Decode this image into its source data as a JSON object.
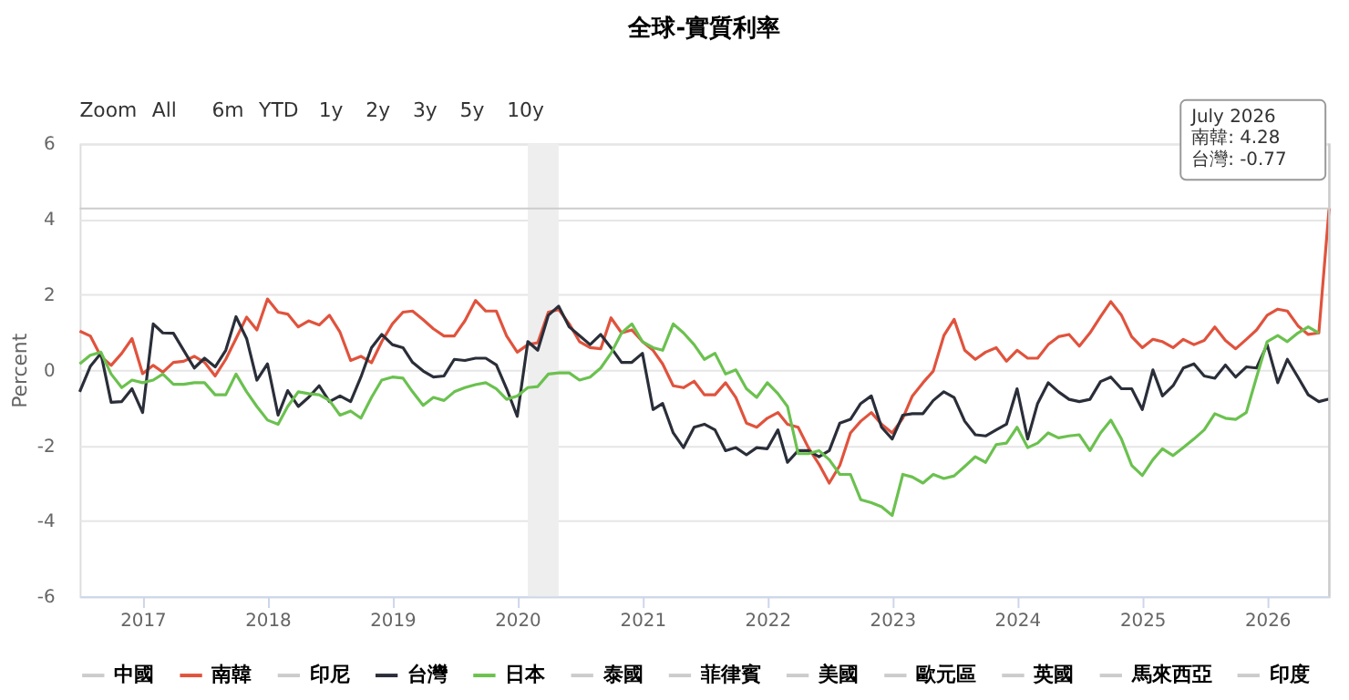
{
  "chart_data": {
    "type": "line",
    "title": "全球-實質利率",
    "ylabel": "Percent",
    "x": [
      "2016-07",
      "2016-08",
      "2016-09",
      "2016-10",
      "2016-11",
      "2016-12",
      "2017-01",
      "2017-02",
      "2017-03",
      "2017-04",
      "2017-05",
      "2017-06",
      "2017-07",
      "2017-08",
      "2017-09",
      "2017-10",
      "2017-11",
      "2017-12",
      "2018-01",
      "2018-02",
      "2018-03",
      "2018-04",
      "2018-05",
      "2018-06",
      "2018-07",
      "2018-08",
      "2018-09",
      "2018-10",
      "2018-11",
      "2018-12",
      "2019-01",
      "2019-02",
      "2019-03",
      "2019-04",
      "2019-05",
      "2019-06",
      "2019-07",
      "2019-08",
      "2019-09",
      "2019-10",
      "2019-11",
      "2019-12",
      "2020-01",
      "2020-02",
      "2020-03",
      "2020-04",
      "2020-05",
      "2020-06",
      "2020-07",
      "2020-08",
      "2020-09",
      "2020-10",
      "2020-11",
      "2020-12",
      "2021-01",
      "2021-02",
      "2021-03",
      "2021-04",
      "2021-05",
      "2021-06",
      "2021-07",
      "2021-08",
      "2021-09",
      "2021-10",
      "2021-11",
      "2021-12",
      "2022-01",
      "2022-02",
      "2022-03",
      "2022-04",
      "2022-05",
      "2022-06",
      "2022-07",
      "2022-08",
      "2022-09",
      "2022-10",
      "2022-11",
      "2022-12",
      "2023-01",
      "2023-02",
      "2023-03",
      "2023-04",
      "2023-05",
      "2023-06",
      "2023-07",
      "2023-08",
      "2023-09",
      "2023-10",
      "2023-11",
      "2023-12",
      "2024-01",
      "2024-02",
      "2024-03",
      "2024-04",
      "2024-05",
      "2024-06",
      "2024-07",
      "2024-08",
      "2024-09",
      "2024-10",
      "2024-11",
      "2024-12",
      "2025-01",
      "2025-02",
      "2025-03",
      "2025-04",
      "2025-05",
      "2025-06",
      "2025-07",
      "2025-08",
      "2025-09",
      "2025-10",
      "2025-11",
      "2025-12",
      "2026-01",
      "2026-02",
      "2026-03",
      "2026-04",
      "2026-05",
      "2026-06",
      "2026-07"
    ],
    "series": [
      {
        "name": "中國",
        "color": "#cccccc",
        "values": [
          null,
          null,
          null,
          null,
          null,
          null,
          null,
          null,
          null,
          null,
          null,
          null,
          null,
          null,
          null,
          null,
          null,
          null,
          null,
          null,
          null,
          null,
          null,
          null,
          null,
          null,
          null,
          null,
          null,
          null,
          null,
          null,
          null,
          null,
          null,
          null,
          null,
          null,
          null,
          null,
          null,
          null,
          null,
          null,
          null,
          null,
          null,
          null,
          null,
          null,
          null,
          null,
          null,
          null,
          null,
          null,
          null,
          null,
          null,
          null,
          null,
          null,
          null,
          null,
          null,
          null,
          null,
          null,
          null,
          null,
          null,
          null,
          null,
          null,
          null,
          null,
          null,
          null,
          null,
          null,
          null,
          null,
          null,
          null,
          null,
          null,
          null,
          null,
          null,
          null,
          null,
          null,
          null,
          null,
          null,
          null,
          null,
          null,
          null,
          null,
          null,
          null,
          null,
          null,
          null,
          null,
          null,
          null,
          null,
          null,
          null,
          null,
          null,
          null,
          null,
          null,
          null,
          null,
          null,
          null,
          null
        ]
      },
      {
        "name": "南韓",
        "color": "#e0533d",
        "values": [
          1.03,
          0.9,
          0.36,
          0.12,
          0.44,
          0.83,
          -0.1,
          0.12,
          -0.06,
          0.2,
          0.23,
          0.36,
          0.2,
          -0.16,
          0.28,
          0.83,
          1.4,
          1.06,
          1.88,
          1.53,
          1.48,
          1.14,
          1.3,
          1.19,
          1.45,
          1.0,
          0.25,
          0.36,
          0.19,
          0.75,
          1.22,
          1.53,
          1.56,
          1.33,
          1.09,
          0.9,
          0.9,
          1.3,
          1.84,
          1.56,
          1.56,
          0.9,
          0.47,
          0.67,
          0.72,
          1.53,
          1.6,
          1.22,
          0.75,
          0.59,
          0.56,
          1.38,
          0.98,
          1.06,
          0.75,
          0.52,
          0.16,
          -0.42,
          -0.47,
          -0.3,
          -0.66,
          -0.66,
          -0.34,
          -0.73,
          -1.41,
          -1.52,
          -1.28,
          -1.13,
          -1.44,
          -1.52,
          -2.06,
          -2.5,
          -3.0,
          -2.53,
          -1.67,
          -1.36,
          -1.13,
          -1.44,
          -1.67,
          -1.28,
          -0.69,
          -0.34,
          -0.03,
          0.91,
          1.34,
          0.52,
          0.28,
          0.47,
          0.59,
          0.23,
          0.52,
          0.31,
          0.31,
          0.67,
          0.88,
          0.94,
          0.63,
          0.98,
          1.41,
          1.81,
          1.45,
          0.88,
          0.59,
          0.81,
          0.75,
          0.59,
          0.81,
          0.67,
          0.78,
          1.14,
          0.78,
          0.56,
          0.81,
          1.06,
          1.45,
          1.61,
          1.56,
          1.17,
          0.94,
          0.98,
          4.28
        ]
      },
      {
        "name": "印尼",
        "color": "#cccccc",
        "values": [
          null,
          null,
          null,
          null,
          null,
          null,
          null,
          null,
          null,
          null,
          null,
          null,
          null,
          null,
          null,
          null,
          null,
          null,
          null,
          null,
          null,
          null,
          null,
          null,
          null,
          null,
          null,
          null,
          null,
          null,
          null,
          null,
          null,
          null,
          null,
          null,
          null,
          null,
          null,
          null,
          null,
          null,
          null,
          null,
          null,
          null,
          null,
          null,
          null,
          null,
          null,
          null,
          null,
          null,
          null,
          null,
          null,
          null,
          null,
          null,
          null,
          null,
          null,
          null,
          null,
          null,
          null,
          null,
          null,
          null,
          null,
          null,
          null,
          null,
          null,
          null,
          null,
          null,
          null,
          null,
          null,
          null,
          null,
          null,
          null,
          null,
          null,
          null,
          null,
          null,
          null,
          null,
          null,
          null,
          null,
          null,
          null,
          null,
          null,
          null,
          null,
          null,
          null,
          null,
          null,
          null,
          null,
          null,
          null,
          null,
          null,
          null,
          null,
          null,
          null,
          null,
          null,
          null,
          null,
          null,
          null
        ]
      },
      {
        "name": "台灣",
        "color": "#2a2e39",
        "values": [
          -0.58,
          0.09,
          0.44,
          -0.86,
          -0.84,
          -0.5,
          -1.13,
          1.22,
          0.98,
          0.97,
          0.52,
          0.05,
          0.31,
          0.08,
          0.52,
          1.41,
          0.83,
          -0.27,
          0.16,
          -1.2,
          -0.55,
          -0.97,
          -0.73,
          -0.42,
          -0.84,
          -0.69,
          -0.84,
          -0.19,
          0.59,
          0.94,
          0.67,
          0.59,
          0.2,
          -0.03,
          -0.19,
          -0.16,
          0.28,
          0.25,
          0.31,
          0.31,
          0.13,
          -0.5,
          -1.23,
          0.75,
          0.52,
          1.45,
          1.69,
          1.14,
          0.91,
          0.67,
          0.94,
          0.59,
          0.2,
          0.2,
          0.44,
          -1.05,
          -0.89,
          -1.67,
          -2.06,
          -1.52,
          -1.44,
          -1.59,
          -2.14,
          -2.06,
          -2.25,
          -2.06,
          -2.09,
          -1.59,
          -2.45,
          -2.14,
          -2.14,
          -2.3,
          -2.14,
          -1.41,
          -1.31,
          -0.89,
          -0.69,
          -1.52,
          -1.83,
          -1.2,
          -1.16,
          -1.16,
          -0.81,
          -0.58,
          -0.73,
          -1.36,
          -1.72,
          -1.75,
          -1.59,
          -1.44,
          -0.5,
          -1.83,
          -0.89,
          -0.34,
          -0.58,
          -0.78,
          -0.84,
          -0.78,
          -0.31,
          -0.19,
          -0.5,
          -0.5,
          -1.05,
          0.0,
          -0.69,
          -0.42,
          0.05,
          0.16,
          -0.16,
          -0.22,
          0.13,
          -0.19,
          0.08,
          0.05,
          0.67,
          -0.34,
          0.28,
          -0.19,
          -0.66,
          -0.84,
          -0.77
        ]
      },
      {
        "name": "日本",
        "color": "#6bc14f",
        "values": [
          0.16,
          0.39,
          0.47,
          -0.11,
          -0.47,
          -0.27,
          -0.34,
          -0.27,
          -0.11,
          -0.38,
          -0.38,
          -0.34,
          -0.34,
          -0.66,
          -0.66,
          -0.11,
          -0.58,
          -0.97,
          -1.33,
          -1.44,
          -0.97,
          -0.58,
          -0.63,
          -0.66,
          -0.81,
          -1.2,
          -1.09,
          -1.28,
          -0.73,
          -0.27,
          -0.19,
          -0.22,
          -0.58,
          -0.94,
          -0.73,
          -0.81,
          -0.58,
          -0.47,
          -0.39,
          -0.34,
          -0.5,
          -0.78,
          -0.69,
          -0.47,
          -0.44,
          -0.11,
          -0.08,
          -0.08,
          -0.27,
          -0.19,
          0.05,
          0.44,
          0.98,
          1.22,
          0.75,
          0.59,
          0.52,
          1.22,
          0.98,
          0.67,
          0.28,
          0.44,
          -0.11,
          0.0,
          -0.5,
          -0.73,
          -0.34,
          -0.63,
          -0.97,
          -2.22,
          -2.22,
          -2.14,
          -2.38,
          -2.77,
          -2.77,
          -3.44,
          -3.52,
          -3.63,
          -3.86,
          -2.77,
          -2.84,
          -3.0,
          -2.77,
          -2.88,
          -2.81,
          -2.56,
          -2.3,
          -2.45,
          -1.98,
          -1.94,
          -1.52,
          -2.06,
          -1.94,
          -1.67,
          -1.8,
          -1.75,
          -1.72,
          -2.14,
          -1.67,
          -1.33,
          -1.83,
          -2.53,
          -2.8,
          -2.38,
          -2.09,
          -2.27,
          -2.06,
          -1.83,
          -1.59,
          -1.16,
          -1.28,
          -1.31,
          -1.13,
          -0.19,
          0.75,
          0.91,
          0.75,
          0.98,
          1.14,
          0.98,
          null
        ]
      },
      {
        "name": "泰國",
        "color": "#cccccc",
        "values": [
          null,
          null,
          null,
          null,
          null,
          null,
          null,
          null,
          null,
          null,
          null,
          null,
          null,
          null,
          null,
          null,
          null,
          null,
          null,
          null,
          null,
          null,
          null,
          null,
          null,
          null,
          null,
          null,
          null,
          null,
          null,
          null,
          null,
          null,
          null,
          null,
          null,
          null,
          null,
          null,
          null,
          null,
          null,
          null,
          null,
          null,
          null,
          null,
          null,
          null,
          null,
          null,
          null,
          null,
          null,
          null,
          null,
          null,
          null,
          null,
          null,
          null,
          null,
          null,
          null,
          null,
          null,
          null,
          null,
          null,
          null,
          null,
          null,
          null,
          null,
          null,
          null,
          null,
          null,
          null,
          null,
          null,
          null,
          null,
          null,
          null,
          null,
          null,
          null,
          null,
          null,
          null,
          null,
          null,
          null,
          null,
          null,
          null,
          null,
          null,
          null,
          null,
          null,
          null,
          null,
          null,
          null,
          null,
          null,
          null,
          null,
          null,
          null,
          null,
          null,
          null,
          null,
          null,
          null,
          null,
          null
        ]
      },
      {
        "name": "菲律賓",
        "color": "#cccccc",
        "values": [
          null,
          null,
          null,
          null,
          null,
          null,
          null,
          null,
          null,
          null,
          null,
          null,
          null,
          null,
          null,
          null,
          null,
          null,
          null,
          null,
          null,
          null,
          null,
          null,
          null,
          null,
          null,
          null,
          null,
          null,
          null,
          null,
          null,
          null,
          null,
          null,
          null,
          null,
          null,
          null,
          null,
          null,
          null,
          null,
          null,
          null,
          null,
          null,
          null,
          null,
          null,
          null,
          null,
          null,
          null,
          null,
          null,
          null,
          null,
          null,
          null,
          null,
          null,
          null,
          null,
          null,
          null,
          null,
          null,
          null,
          null,
          null,
          null,
          null,
          null,
          null,
          null,
          null,
          null,
          null,
          null,
          null,
          null,
          null,
          null,
          null,
          null,
          null,
          null,
          null,
          null,
          null,
          null,
          null,
          null,
          null,
          null,
          null,
          null,
          null,
          null,
          null,
          null,
          null,
          null,
          null,
          null,
          null,
          null,
          null,
          null,
          null,
          null,
          null,
          null,
          null,
          null,
          null,
          null,
          null,
          null
        ]
      },
      {
        "name": "美國",
        "color": "#cccccc",
        "values": [
          null,
          null,
          null,
          null,
          null,
          null,
          null,
          null,
          null,
          null,
          null,
          null,
          null,
          null,
          null,
          null,
          null,
          null,
          null,
          null,
          null,
          null,
          null,
          null,
          null,
          null,
          null,
          null,
          null,
          null,
          null,
          null,
          null,
          null,
          null,
          null,
          null,
          null,
          null,
          null,
          null,
          null,
          null,
          null,
          null,
          null,
          null,
          null,
          null,
          null,
          null,
          null,
          null,
          null,
          null,
          null,
          null,
          null,
          null,
          null,
          null,
          null,
          null,
          null,
          null,
          null,
          null,
          null,
          null,
          null,
          null,
          null,
          null,
          null,
          null,
          null,
          null,
          null,
          null,
          null,
          null,
          null,
          null,
          null,
          null,
          null,
          null,
          null,
          null,
          null,
          null,
          null,
          null,
          null,
          null,
          null,
          null,
          null,
          null,
          null,
          null,
          null,
          null,
          null,
          null,
          null,
          null,
          null,
          null,
          null,
          null,
          null,
          null,
          null,
          null,
          null,
          null,
          null,
          null,
          null,
          null
        ]
      },
      {
        "name": "歐元區",
        "color": "#cccccc",
        "values": [
          null,
          null,
          null,
          null,
          null,
          null,
          null,
          null,
          null,
          null,
          null,
          null,
          null,
          null,
          null,
          null,
          null,
          null,
          null,
          null,
          null,
          null,
          null,
          null,
          null,
          null,
          null,
          null,
          null,
          null,
          null,
          null,
          null,
          null,
          null,
          null,
          null,
          null,
          null,
          null,
          null,
          null,
          null,
          null,
          null,
          null,
          null,
          null,
          null,
          null,
          null,
          null,
          null,
          null,
          null,
          null,
          null,
          null,
          null,
          null,
          null,
          null,
          null,
          null,
          null,
          null,
          null,
          null,
          null,
          null,
          null,
          null,
          null,
          null,
          null,
          null,
          null,
          null,
          null,
          null,
          null,
          null,
          null,
          null,
          null,
          null,
          null,
          null,
          null,
          null,
          null,
          null,
          null,
          null,
          null,
          null,
          null,
          null,
          null,
          null,
          null,
          null,
          null,
          null,
          null,
          null,
          null,
          null,
          null,
          null,
          null,
          null,
          null,
          null,
          null,
          null,
          null,
          null,
          null,
          null,
          null
        ]
      },
      {
        "name": "英國",
        "color": "#cccccc",
        "values": [
          null,
          null,
          null,
          null,
          null,
          null,
          null,
          null,
          null,
          null,
          null,
          null,
          null,
          null,
          null,
          null,
          null,
          null,
          null,
          null,
          null,
          null,
          null,
          null,
          null,
          null,
          null,
          null,
          null,
          null,
          null,
          null,
          null,
          null,
          null,
          null,
          null,
          null,
          null,
          null,
          null,
          null,
          null,
          null,
          null,
          null,
          null,
          null,
          null,
          null,
          null,
          null,
          null,
          null,
          null,
          null,
          null,
          null,
          null,
          null,
          null,
          null,
          null,
          null,
          null,
          null,
          null,
          null,
          null,
          null,
          null,
          null,
          null,
          null,
          null,
          null,
          null,
          null,
          null,
          null,
          null,
          null,
          null,
          null,
          null,
          null,
          null,
          null,
          null,
          null,
          null,
          null,
          null,
          null,
          null,
          null,
          null,
          null,
          null,
          null,
          null,
          null,
          null,
          null,
          null,
          null,
          null,
          null,
          null,
          null,
          null,
          null,
          null,
          null,
          null,
          null,
          null,
          null,
          null,
          null,
          null
        ]
      },
      {
        "name": "馬來西亞",
        "color": "#cccccc",
        "values": [
          null,
          null,
          null,
          null,
          null,
          null,
          null,
          null,
          null,
          null,
          null,
          null,
          null,
          null,
          null,
          null,
          null,
          null,
          null,
          null,
          null,
          null,
          null,
          null,
          null,
          null,
          null,
          null,
          null,
          null,
          null,
          null,
          null,
          null,
          null,
          null,
          null,
          null,
          null,
          null,
          null,
          null,
          null,
          null,
          null,
          null,
          null,
          null,
          null,
          null,
          null,
          null,
          null,
          null,
          null,
          null,
          null,
          null,
          null,
          null,
          null,
          null,
          null,
          null,
          null,
          null,
          null,
          null,
          null,
          null,
          null,
          null,
          null,
          null,
          null,
          null,
          null,
          null,
          null,
          null,
          null,
          null,
          null,
          null,
          null,
          null,
          null,
          null,
          null,
          null,
          null,
          null,
          null,
          null,
          null,
          null,
          null,
          null,
          null,
          null,
          null,
          null,
          null,
          null,
          null,
          null,
          null,
          null,
          null,
          null,
          null,
          null,
          null,
          null,
          null,
          null,
          null,
          null,
          null,
          null,
          null
        ]
      },
      {
        "name": "印度",
        "color": "#cccccc",
        "values": [
          null,
          null,
          null,
          null,
          null,
          null,
          null,
          null,
          null,
          null,
          null,
          null,
          null,
          null,
          null,
          null,
          null,
          null,
          null,
          null,
          null,
          null,
          null,
          null,
          null,
          null,
          null,
          null,
          null,
          null,
          null,
          null,
          null,
          null,
          null,
          null,
          null,
          null,
          null,
          null,
          null,
          null,
          null,
          null,
          null,
          null,
          null,
          null,
          null,
          null,
          null,
          null,
          null,
          null,
          null,
          null,
          null,
          null,
          null,
          null,
          null,
          null,
          null,
          null,
          null,
          null,
          null,
          null,
          null,
          null,
          null,
          null,
          null,
          null,
          null,
          null,
          null,
          null,
          null,
          null,
          null,
          null,
          null,
          null,
          null,
          null,
          null,
          null,
          null,
          null,
          null,
          null,
          null,
          null,
          null,
          null,
          null,
          null,
          null,
          null,
          null,
          null,
          null,
          null,
          null,
          null,
          null,
          null,
          null,
          null,
          null,
          null,
          null,
          null,
          null,
          null,
          null,
          null,
          null,
          null,
          null
        ]
      }
    ],
    "xlim": [
      "2016-07",
      "2026-07"
    ],
    "xticks": [
      "2017",
      "2018",
      "2019",
      "2020",
      "2021",
      "2022",
      "2023",
      "2024",
      "2025",
      "2026"
    ],
    "ylim": [
      -6,
      6
    ],
    "yticks": [
      -6,
      -4,
      -2,
      0,
      2,
      4,
      6
    ],
    "grid": "y",
    "legend": "bottom",
    "line_style": "solid",
    "marker": "none",
    "bands": [
      {
        "axis": "x",
        "from": "2020-02",
        "to": "2020-05",
        "color": "#eeeeee"
      }
    ],
    "ref_lines": [
      {
        "axis": "y",
        "value": 4.28,
        "color": "#cccccc"
      },
      {
        "axis": "x",
        "value": "2026-07",
        "color": "#cccccc"
      }
    ],
    "annotations": [
      "Zoom",
      "All",
      "6m",
      "YTD",
      "1y",
      "2y",
      "3y",
      "5y",
      "10y",
      "July 2026\n南韓: 4.28\n台灣: -0.77"
    ]
  }
}
